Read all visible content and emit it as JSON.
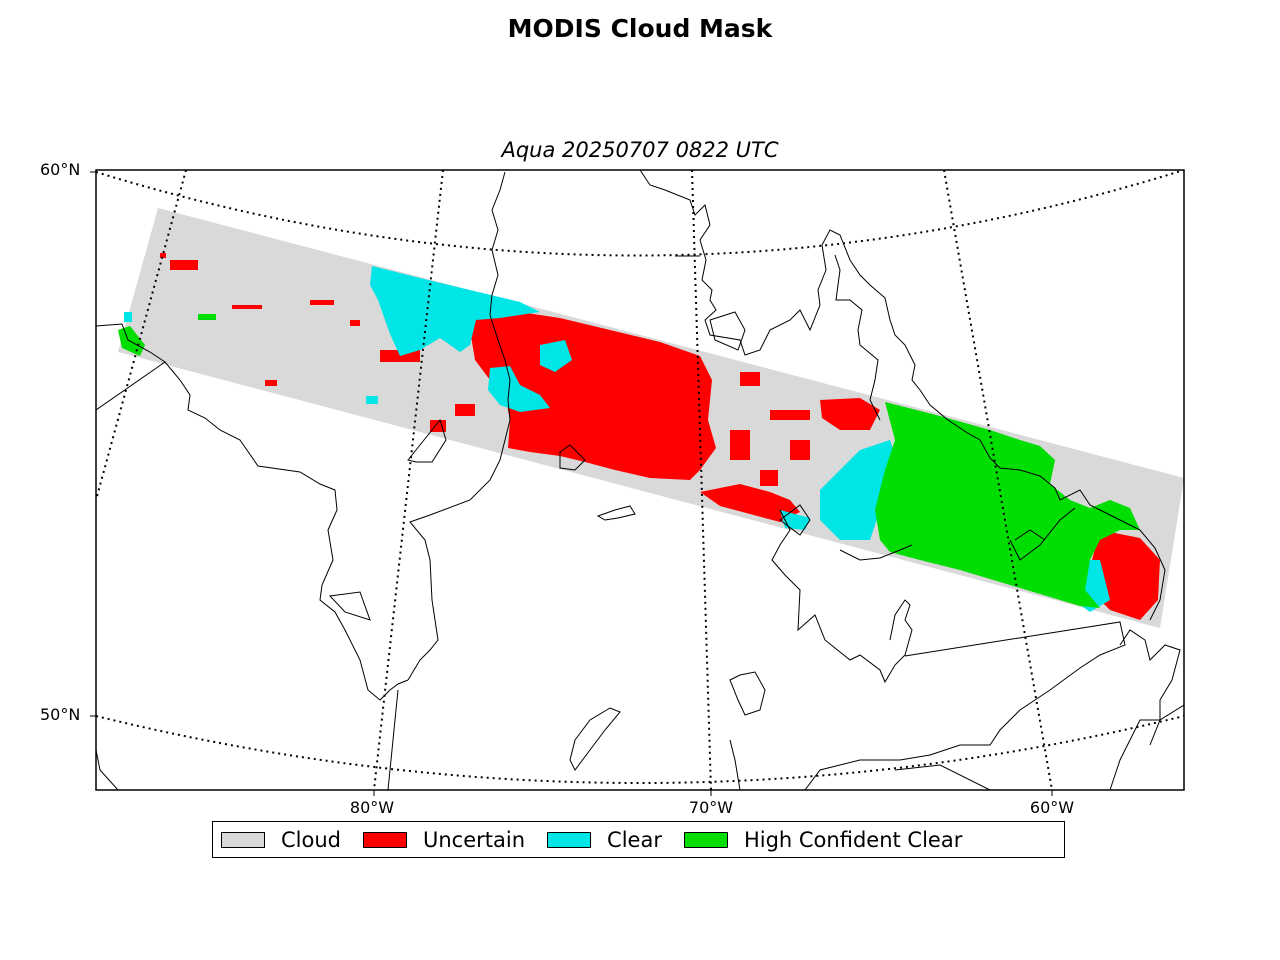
{
  "title": "MODIS Cloud Mask",
  "subtitle": "Aqua 20250707 0822 UTC",
  "lat_labels": [
    "60°N",
    "50°N"
  ],
  "lon_labels": [
    "80°W",
    "70°W",
    "60°W"
  ],
  "legend": [
    {
      "label": "Cloud",
      "color": "#d9d9d9"
    },
    {
      "label": "Uncertain",
      "color": "#ff0000"
    },
    {
      "label": "Clear",
      "color": "#00e5e5"
    },
    {
      "label": "High Confident Clear",
      "color": "#00dd00"
    }
  ]
}
